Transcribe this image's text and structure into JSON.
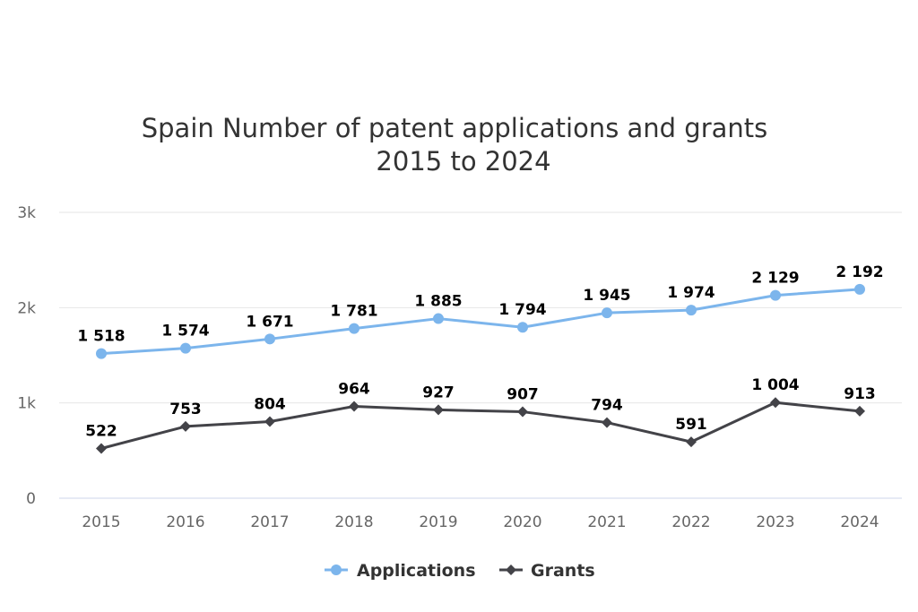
{
  "chart_data": {
    "type": "line",
    "title": "Spain Number of patent applications and grants",
    "subtitle": "2015 to 2024",
    "categories": [
      "2015",
      "2016",
      "2017",
      "2018",
      "2019",
      "2020",
      "2021",
      "2022",
      "2023",
      "2024"
    ],
    "y_ticks": [
      "0",
      "1k",
      "2k",
      "3k"
    ],
    "ylim": [
      0,
      3000
    ],
    "grid": true,
    "legend_position": "bottom-center",
    "series": [
      {
        "name": "Applications",
        "color": "#7cb5ec",
        "marker": "circle",
        "values": [
          1518,
          1574,
          1671,
          1781,
          1885,
          1794,
          1945,
          1974,
          2129,
          2192
        ],
        "labels": [
          "1 518",
          "1 574",
          "1 671",
          "1 781",
          "1 885",
          "1 794",
          "1 945",
          "1 974",
          "2 129",
          "2 192"
        ]
      },
      {
        "name": "Grants",
        "color": "#434348",
        "marker": "diamond",
        "values": [
          522,
          753,
          804,
          964,
          927,
          907,
          794,
          591,
          1004,
          913
        ],
        "labels": [
          "522",
          "753",
          "804",
          "964",
          "927",
          "907",
          "794",
          "591",
          "1 004",
          "913"
        ]
      }
    ]
  }
}
